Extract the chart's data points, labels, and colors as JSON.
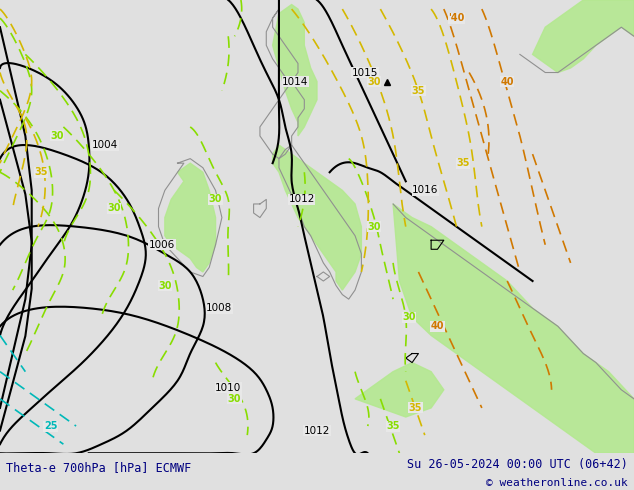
{
  "title_left": "Theta-e 700hPa [hPa] ECMWF",
  "title_right": "Su 26-05-2024 00:00 UTC (06+42)",
  "copyright": "© weatheronline.co.uk",
  "bg_color": "#e0e0e0",
  "map_bg_color": "#e8e8e8",
  "green_fill_color": "#b4e890",
  "footer_bg": "#d4d4d4",
  "footer_text_color": "#000080",
  "isobar_color": "#000000",
  "theta_lgreen_color": "#88dd00",
  "theta_yellow_color": "#d4b800",
  "theta_orange_color": "#d07800",
  "theta_cyan_color": "#00b8b8",
  "coast_color": "#909090",
  "figsize": [
    6.34,
    4.9
  ],
  "dpi": 100
}
